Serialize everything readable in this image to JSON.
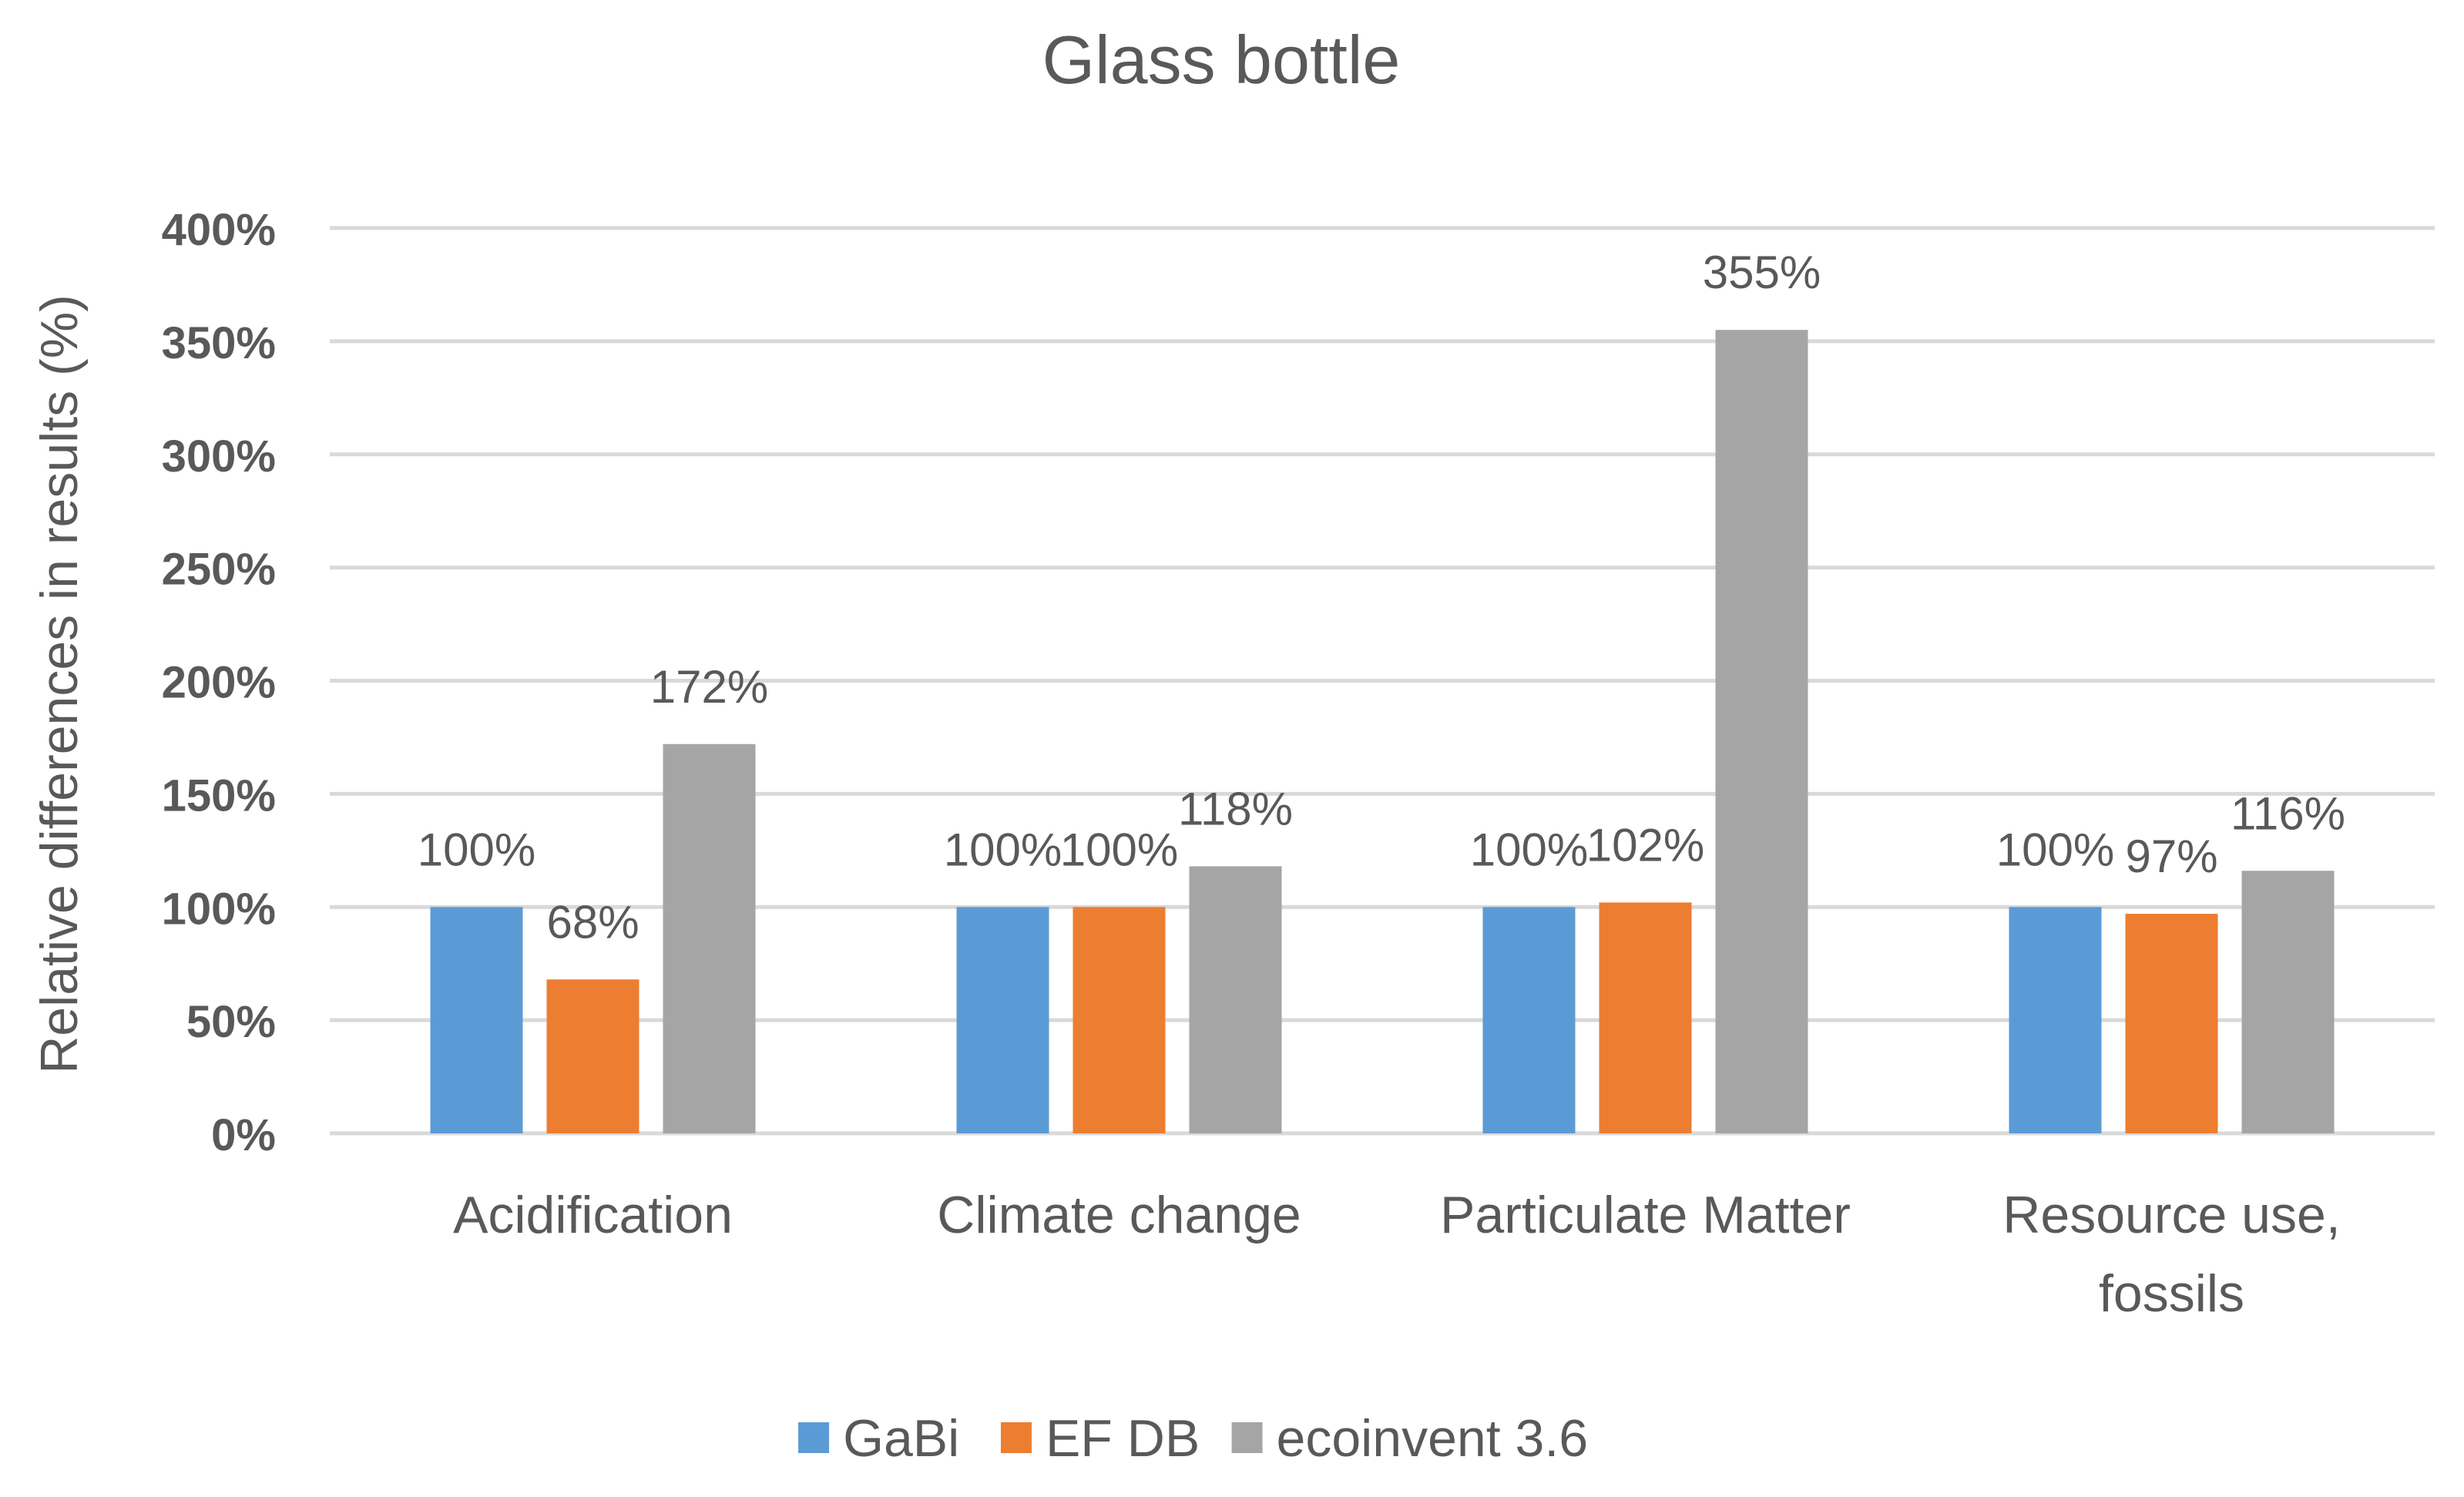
{
  "chart_data": {
    "type": "bar",
    "title": "Glass bottle",
    "xlabel": "",
    "ylabel": "Relative differences  in results (%)",
    "ylim": [
      0,
      400
    ],
    "yticks": [
      0,
      50,
      100,
      150,
      200,
      250,
      300,
      350,
      400
    ],
    "ytick_labels": [
      "0%",
      "50%",
      "100%",
      "150%",
      "200%",
      "250%",
      "300%",
      "350%",
      "400%"
    ],
    "grid": true,
    "legend_position": "bottom",
    "categories": [
      {
        "lines": [
          "Acidification"
        ]
      },
      {
        "lines": [
          "Climate change"
        ]
      },
      {
        "lines": [
          "Particulate Matter"
        ]
      },
      {
        "lines": [
          "Resource use,",
          "fossils"
        ]
      }
    ],
    "series": [
      {
        "name": "GaBi",
        "color": "#5b9bd5",
        "values": [
          100,
          100,
          100,
          100
        ],
        "labels": [
          "100%",
          "100%",
          "100%",
          "100%"
        ]
      },
      {
        "name": "EF DB",
        "color": "#ed7d31",
        "values": [
          68,
          100,
          102,
          97
        ],
        "labels": [
          "68%",
          "100%",
          "102%",
          "97%"
        ]
      },
      {
        "name": "ecoinvent 3.6",
        "color": "#a5a5a5",
        "values": [
          172,
          118,
          355,
          116
        ],
        "labels": [
          "172%",
          "118%",
          "355%",
          "116%"
        ]
      }
    ],
    "colors": {
      "text": "#595959",
      "grid": "#d9d9d9",
      "title": "#595959"
    }
  }
}
